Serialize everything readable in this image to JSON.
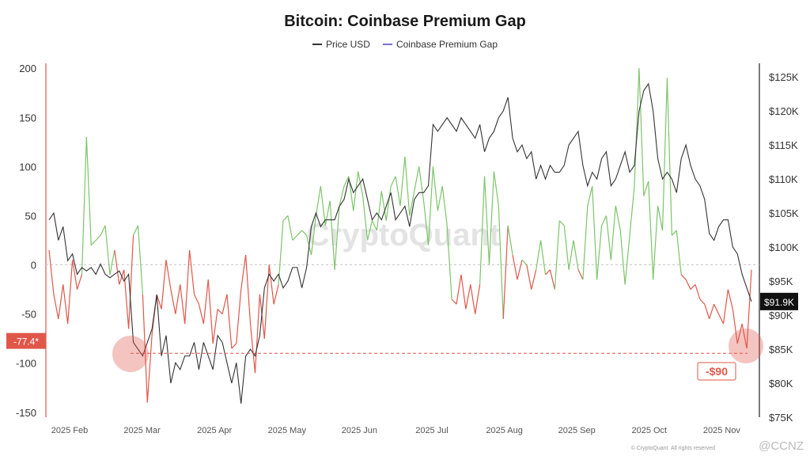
{
  "title": "Bitcoin: Coinbase Premium Gap",
  "legend": {
    "price": "Price USD",
    "gap": "Coinbase Premium Gap"
  },
  "watermark": "CryptoQuant",
  "footer": "© CryptoQuant. All rights reserved",
  "badge": "@CCNZ",
  "colors": {
    "price": "#333333",
    "gap_positive": "#7dc46a",
    "gap_negative": "#e0574a",
    "annotation": "#e0574a",
    "price_badge": "#111111",
    "legend_gap": "#7b6fd8"
  },
  "chart_data": {
    "type": "line",
    "x_ticks": [
      "2025 Feb",
      "2025 Mar",
      "2025 Apr",
      "2025 May",
      "2025 Jun",
      "2025 Jul",
      "2025 Aug",
      "2025 Sep",
      "2025 Oct",
      "2025 Nov"
    ],
    "y_left": {
      "ticks": [
        200,
        150,
        100,
        50,
        0,
        -50,
        -100,
        -150
      ],
      "range": [
        -155,
        205
      ]
    },
    "y_right": {
      "ticks": [
        "$125K",
        "$120K",
        "$115K",
        "$110K",
        "$105K",
        "$100K",
        "$95K",
        "$90K",
        "$85K",
        "$80K",
        "$75K"
      ],
      "range": [
        75000,
        127000
      ]
    },
    "series": [
      {
        "name": "Price USD",
        "axis": "right",
        "unit": "USD",
        "t": [
          0,
          2,
          4,
          6,
          8,
          10,
          12,
          14,
          16,
          18,
          20,
          22,
          24,
          26,
          28,
          30,
          32,
          34,
          36,
          38,
          40,
          42,
          44,
          46,
          48,
          50,
          52,
          54,
          56,
          58,
          60,
          62,
          64,
          66,
          68,
          70,
          72,
          74,
          76,
          78,
          80,
          82,
          84,
          86,
          88,
          90,
          92,
          94,
          96,
          98,
          100,
          102,
          104,
          106,
          108,
          110,
          112,
          114,
          116,
          118,
          120,
          122,
          124,
          126,
          128,
          130,
          132,
          134,
          136,
          138,
          140,
          142,
          144,
          146,
          148,
          150,
          152,
          154,
          156,
          158,
          160,
          162,
          164,
          166,
          168,
          170,
          172,
          174,
          176,
          178,
          180,
          182,
          184,
          186,
          188,
          190,
          192,
          194,
          196,
          198,
          200,
          202,
          204,
          206,
          208,
          210,
          212,
          214,
          216,
          218,
          220,
          222,
          224,
          226,
          228,
          230,
          232,
          234,
          236,
          238,
          240,
          242,
          244,
          246,
          248,
          250,
          252,
          254,
          256,
          258,
          260,
          262,
          264,
          266,
          268,
          270,
          272,
          274,
          276,
          278,
          280,
          282,
          284,
          286,
          288,
          290,
          292,
          294,
          296,
          298,
          300
        ],
        "values": [
          104000,
          105000,
          101000,
          103000,
          98000,
          99000,
          96000,
          97000,
          96500,
          97000,
          96000,
          97500,
          96000,
          95500,
          96000,
          96500,
          95000,
          96000,
          86000,
          85000,
          84000,
          86000,
          88000,
          93000,
          84000,
          87000,
          80000,
          83000,
          82000,
          84000,
          84000,
          86000,
          82000,
          86000,
          84000,
          82000,
          87000,
          86000,
          83000,
          80000,
          83000,
          77000,
          84000,
          85000,
          84000,
          87000,
          94000,
          96000,
          95000,
          96000,
          94000,
          95000,
          97000,
          97000,
          94000,
          97000,
          103000,
          105000,
          103000,
          104000,
          104000,
          104000,
          106000,
          107000,
          110000,
          108000,
          109000,
          110000,
          107000,
          104000,
          105000,
          104000,
          106000,
          108000,
          104000,
          105000,
          106000,
          103000,
          107000,
          108000,
          108000,
          109000,
          118000,
          117000,
          118000,
          119000,
          118000,
          117000,
          119000,
          118000,
          117000,
          116000,
          118000,
          114000,
          116000,
          117000,
          119000,
          120000,
          122000,
          116000,
          114000,
          115000,
          113000,
          114000,
          110000,
          112000,
          110000,
          112000,
          111000,
          111000,
          112000,
          115000,
          116000,
          117000,
          112000,
          109000,
          111000,
          110000,
          113000,
          114000,
          109000,
          110000,
          112000,
          114000,
          111000,
          112000,
          120000,
          123000,
          124000,
          120000,
          113000,
          110000,
          111000,
          110000,
          108000,
          113000,
          115000,
          112000,
          110000,
          109000,
          107000,
          102000,
          101000,
          103000,
          104000,
          104000,
          100000,
          99000,
          96000,
          94000,
          92000
        ],
        "last_label": "$91.9K"
      },
      {
        "name": "Coinbase Premium Gap",
        "axis": "left",
        "unit": "USD",
        "t": [
          0,
          2,
          4,
          6,
          8,
          10,
          12,
          14,
          16,
          18,
          20,
          22,
          24,
          26,
          28,
          30,
          32,
          34,
          36,
          38,
          40,
          42,
          44,
          46,
          48,
          50,
          52,
          54,
          56,
          58,
          60,
          62,
          64,
          66,
          68,
          70,
          72,
          74,
          76,
          78,
          80,
          82,
          84,
          86,
          88,
          90,
          92,
          94,
          96,
          98,
          100,
          102,
          104,
          106,
          108,
          110,
          112,
          114,
          116,
          118,
          120,
          122,
          124,
          126,
          128,
          130,
          132,
          134,
          136,
          138,
          140,
          142,
          144,
          146,
          148,
          150,
          152,
          154,
          156,
          158,
          160,
          162,
          164,
          166,
          168,
          170,
          172,
          174,
          176,
          178,
          180,
          182,
          184,
          186,
          188,
          190,
          192,
          194,
          196,
          198,
          200,
          202,
          204,
          206,
          208,
          210,
          212,
          214,
          216,
          218,
          220,
          222,
          224,
          226,
          228,
          230,
          232,
          234,
          236,
          238,
          240,
          242,
          244,
          246,
          248,
          250,
          252,
          254,
          256,
          258,
          260,
          262,
          264,
          266,
          268,
          270,
          272,
          274,
          276,
          278,
          280,
          282,
          284,
          286,
          288,
          290,
          292,
          294,
          296,
          298,
          300
        ],
        "values": [
          15,
          -30,
          -55,
          -20,
          -60,
          5,
          -25,
          -10,
          130,
          20,
          25,
          30,
          40,
          -10,
          15,
          -20,
          -5,
          -65,
          30,
          40,
          -30,
          -140,
          -70,
          -30,
          -45,
          5,
          -25,
          -50,
          -20,
          -60,
          15,
          -30,
          -40,
          -60,
          -15,
          -80,
          -45,
          -50,
          -30,
          -85,
          -80,
          -25,
          10,
          -60,
          -110,
          -30,
          -75,
          0,
          -40,
          -20,
          45,
          50,
          25,
          30,
          35,
          30,
          10,
          50,
          80,
          40,
          65,
          -5,
          60,
          80,
          90,
          55,
          95,
          70,
          25,
          45,
          35,
          75,
          45,
          80,
          90,
          60,
          110,
          50,
          75,
          100,
          65,
          20,
          100,
          55,
          80,
          40,
          -35,
          -40,
          -10,
          -45,
          -20,
          -50,
          -20,
          90,
          0,
          95,
          60,
          -55,
          40,
          10,
          -15,
          5,
          0,
          -25,
          -5,
          25,
          -10,
          -5,
          -25,
          45,
          40,
          -5,
          25,
          -5,
          -15,
          60,
          80,
          -15,
          40,
          50,
          5,
          60,
          35,
          -20,
          30,
          80,
          200,
          70,
          85,
          -15,
          60,
          35,
          190,
          30,
          35,
          -10,
          -15,
          -25,
          -20,
          -35,
          -40,
          -55,
          -40,
          -50,
          -60,
          -25,
          -45,
          -80,
          -60,
          -85,
          -5
        ]
      }
    ],
    "annotations": [
      {
        "label": "-77.4*",
        "y": -77.4,
        "position": "left-axis"
      },
      {
        "label": "-$90",
        "y": -90,
        "style": "dashed-line"
      }
    ]
  }
}
